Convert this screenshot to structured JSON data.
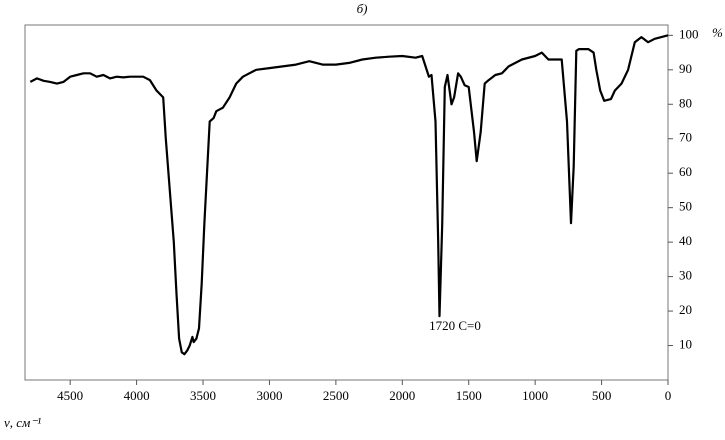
{
  "chart_data": {
    "type": "line",
    "title": "б)",
    "ylabel": "%",
    "xlabel": "ν, см⁻¹",
    "annotation": "1720 C=0",
    "xlim": [
      4840,
      0
    ],
    "ylim": [
      0,
      103
    ],
    "xticks": [
      4500,
      4000,
      3500,
      3000,
      2500,
      2000,
      1500,
      1000,
      500,
      0
    ],
    "yticks": [
      10,
      20,
      30,
      40,
      50,
      60,
      70,
      80,
      90,
      100
    ],
    "series": [
      {
        "color": "#000000",
        "x": [
          4800,
          4750,
          4700,
          4650,
          4600,
          4550,
          4500,
          4450,
          4400,
          4350,
          4300,
          4250,
          4200,
          4150,
          4100,
          4050,
          4000,
          3950,
          3900,
          3850,
          3800,
          3780,
          3750,
          3720,
          3700,
          3680,
          3660,
          3640,
          3620,
          3600,
          3580,
          3570,
          3550,
          3530,
          3510,
          3490,
          3470,
          3450,
          3420,
          3400,
          3350,
          3300,
          3250,
          3200,
          3100,
          3000,
          2900,
          2800,
          2700,
          2600,
          2500,
          2400,
          2300,
          2200,
          2100,
          2000,
          1900,
          1850,
          1800,
          1780,
          1750,
          1730,
          1720,
          1700,
          1680,
          1660,
          1630,
          1610,
          1580,
          1560,
          1530,
          1500,
          1460,
          1440,
          1410,
          1380,
          1350,
          1300,
          1250,
          1200,
          1100,
          1000,
          950,
          900,
          850,
          800,
          760,
          740,
          730,
          710,
          690,
          670,
          600,
          560,
          540,
          510,
          480,
          430,
          400,
          350,
          300,
          250,
          200,
          150,
          100,
          50,
          0
        ],
        "values": [
          86.5,
          87.5,
          86.8,
          86.5,
          86,
          86.5,
          88,
          88.5,
          89,
          89,
          88,
          88.5,
          87.5,
          88,
          87.8,
          88,
          88,
          88,
          87,
          84,
          82,
          70,
          55,
          40,
          25,
          12,
          8,
          7.5,
          8.5,
          10,
          12.5,
          11,
          12,
          15,
          28,
          45,
          60,
          75,
          76,
          78,
          79,
          82,
          86,
          88,
          90,
          90.5,
          91,
          91.5,
          92.5,
          91.5,
          91.5,
          92,
          93,
          93.5,
          93.8,
          94,
          93.5,
          94,
          88,
          88.5,
          75,
          40,
          18.5,
          45,
          85,
          88.5,
          80,
          82,
          89,
          88,
          85.5,
          85,
          72,
          63.5,
          72,
          86,
          87,
          88.5,
          89,
          91,
          93,
          94,
          95,
          93,
          93,
          93,
          75,
          55,
          45.5,
          62,
          95.5,
          96,
          96,
          95,
          90,
          84,
          81,
          81.5,
          84,
          86,
          90,
          98,
          99.5,
          98,
          99,
          99.5,
          100
        ]
      }
    ]
  }
}
